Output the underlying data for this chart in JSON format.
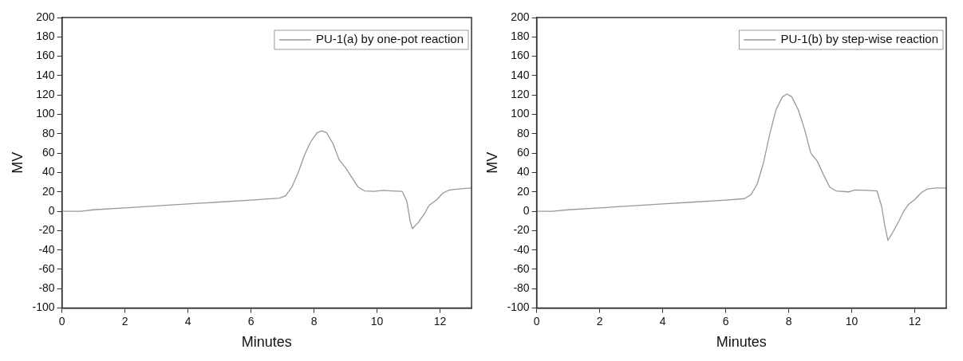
{
  "chart_data": [
    {
      "type": "line",
      "xlabel": "Minutes",
      "ylabel": "MV",
      "xlim": [
        0,
        13
      ],
      "xticks": [
        0,
        2,
        4,
        6,
        8,
        10,
        12
      ],
      "ylim": [
        -100,
        200
      ],
      "yticks": [
        -100,
        -80,
        -60,
        -40,
        -20,
        0,
        20,
        40,
        60,
        80,
        100,
        120,
        140,
        160,
        180,
        200
      ],
      "grid": false,
      "legend": "top right",
      "marker": "none",
      "line_style": "solid",
      "series": [
        {
          "name": "PU-1(a) by one-pot reaction",
          "color": "#999999",
          "x": [
            0,
            0.6,
            1,
            2,
            3,
            4,
            5,
            6,
            6.9,
            7.1,
            7.3,
            7.5,
            7.7,
            7.9,
            8.1,
            8.25,
            8.4,
            8.6,
            8.8,
            9.0,
            9.2,
            9.4,
            9.6,
            9.9,
            10.2,
            10.5,
            10.8,
            10.95,
            11.05,
            11.12,
            11.3,
            11.5,
            11.65,
            11.9,
            12.1,
            12.3,
            12.6,
            13
          ],
          "values": [
            0,
            0,
            1.5,
            3.5,
            5.5,
            7.5,
            9.5,
            11.5,
            13.5,
            16,
            25,
            40,
            58,
            72,
            81,
            83,
            81,
            70,
            53,
            45,
            35,
            25,
            21,
            20.5,
            21.5,
            21,
            20.5,
            10,
            -10,
            -18,
            -12,
            -3,
            6,
            12,
            19,
            22,
            23,
            24
          ]
        }
      ]
    },
    {
      "type": "line",
      "xlabel": "Minutes",
      "ylabel": "MV",
      "xlim": [
        0,
        13
      ],
      "xticks": [
        0,
        2,
        4,
        6,
        8,
        10,
        12
      ],
      "ylim": [
        -100,
        200
      ],
      "yticks": [
        -100,
        -80,
        -60,
        -40,
        -20,
        0,
        20,
        40,
        60,
        80,
        100,
        120,
        140,
        160,
        180,
        200
      ],
      "grid": false,
      "legend": "top right",
      "marker": "none",
      "line_style": "solid",
      "series": [
        {
          "name": "PU-1(b) by step-wise reaction",
          "color": "#999999",
          "x": [
            0,
            0.5,
            1,
            2,
            3,
            4,
            5,
            6,
            6.6,
            6.8,
            7.0,
            7.2,
            7.4,
            7.6,
            7.8,
            7.95,
            8.1,
            8.3,
            8.5,
            8.7,
            8.8,
            8.9,
            9.1,
            9.3,
            9.5,
            9.9,
            10.1,
            10.5,
            10.8,
            10.95,
            11.05,
            11.15,
            11.3,
            11.5,
            11.65,
            11.8,
            12.0,
            12.2,
            12.4,
            12.7,
            13
          ],
          "values": [
            0,
            0,
            1.5,
            3.5,
            5.5,
            7.5,
            9.5,
            11.5,
            13,
            17,
            28,
            50,
            80,
            105,
            118,
            121,
            118,
            105,
            85,
            60,
            56,
            52,
            38,
            25,
            21,
            20,
            22,
            21.5,
            21,
            5,
            -15,
            -30,
            -22,
            -10,
            0,
            7,
            12,
            19,
            23,
            24,
            24
          ]
        }
      ]
    }
  ]
}
